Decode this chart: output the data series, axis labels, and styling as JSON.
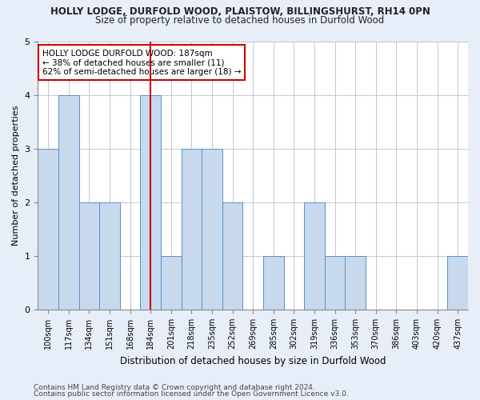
{
  "title_line1": "HOLLY LODGE, DURFOLD WOOD, PLAISTOW, BILLINGSHURST, RH14 0PN",
  "title_line2": "Size of property relative to detached houses in Durfold Wood",
  "xlabel": "Distribution of detached houses by size in Durfold Wood",
  "ylabel": "Number of detached properties",
  "categories": [
    "100sqm",
    "117sqm",
    "134sqm",
    "151sqm",
    "168sqm",
    "184sqm",
    "201sqm",
    "218sqm",
    "235sqm",
    "252sqm",
    "269sqm",
    "285sqm",
    "302sqm",
    "319sqm",
    "336sqm",
    "353sqm",
    "370sqm",
    "386sqm",
    "403sqm",
    "420sqm",
    "437sqm"
  ],
  "values": [
    3,
    4,
    2,
    2,
    0,
    4,
    1,
    3,
    3,
    2,
    0,
    1,
    0,
    2,
    1,
    1,
    0,
    0,
    0,
    0,
    1
  ],
  "bar_color": "#c8d9ee",
  "bar_edge_color": "#5a8fc2",
  "highlight_index": 5,
  "highlight_line_color": "#cc0000",
  "annotation_text": "HOLLY LODGE DURFOLD WOOD: 187sqm\n← 38% of detached houses are smaller (11)\n62% of semi-detached houses are larger (18) →",
  "annotation_box_color": "#ffffff",
  "annotation_box_edge_color": "#cc0000",
  "ylim": [
    0,
    5
  ],
  "yticks": [
    0,
    1,
    2,
    3,
    4,
    5
  ],
  "footer_line1": "Contains HM Land Registry data © Crown copyright and database right 2024.",
  "footer_line2": "Contains public sector information licensed under the Open Government Licence v3.0.",
  "background_color": "#e8eef8",
  "plot_background_color": "#ffffff",
  "title_fontsize": 8.5,
  "subtitle_fontsize": 8.5,
  "axis_label_fontsize": 8,
  "tick_fontsize": 7,
  "footer_fontsize": 6.5,
  "annotation_fontsize": 7.5
}
